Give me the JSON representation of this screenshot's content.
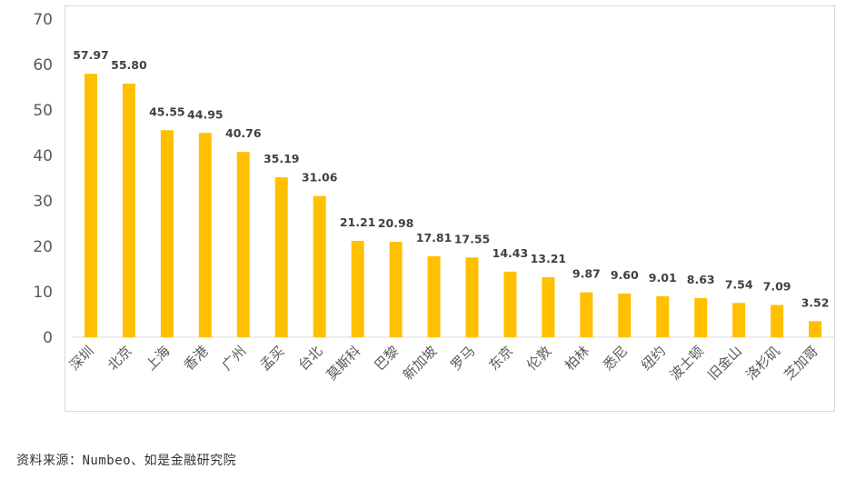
{
  "chart_data": {
    "type": "bar",
    "title": "",
    "xlabel": "",
    "ylabel": "",
    "ylim": [
      0,
      70
    ],
    "yticks": [
      0,
      10,
      20,
      30,
      40,
      50,
      60,
      70
    ],
    "grid": false,
    "legend": "none",
    "categories": [
      "深圳",
      "北京",
      "上海",
      "香港",
      "广州",
      "孟买",
      "台北",
      "莫斯科",
      "巴黎",
      "新加坡",
      "罗马",
      "东京",
      "伦敦",
      "柏林",
      "悉尼",
      "纽约",
      "波士顿",
      "旧金山",
      "洛杉矶",
      "芝加哥"
    ],
    "values": [
      57.97,
      55.8,
      45.55,
      44.95,
      40.76,
      35.19,
      31.06,
      21.21,
      20.98,
      17.81,
      17.55,
      14.43,
      13.21,
      9.87,
      9.6,
      9.01,
      8.63,
      7.54,
      7.09,
      3.52
    ],
    "value_labels": [
      "57.97",
      "55.80",
      "45.55",
      "44.95",
      "40.76",
      "35.19",
      "31.06",
      "21.21",
      "20.98",
      "17.81",
      "17.55",
      "14.43",
      "13.21",
      "9.87",
      "9.60",
      "9.01",
      "8.63",
      "7.54",
      "7.09",
      "3.52"
    ],
    "colors": {
      "bar": "#FFC000",
      "axis": "#d9d9d9",
      "text": "#595959"
    }
  },
  "source": {
    "text": "资料来源：Numbeo、如是金融研究院"
  }
}
